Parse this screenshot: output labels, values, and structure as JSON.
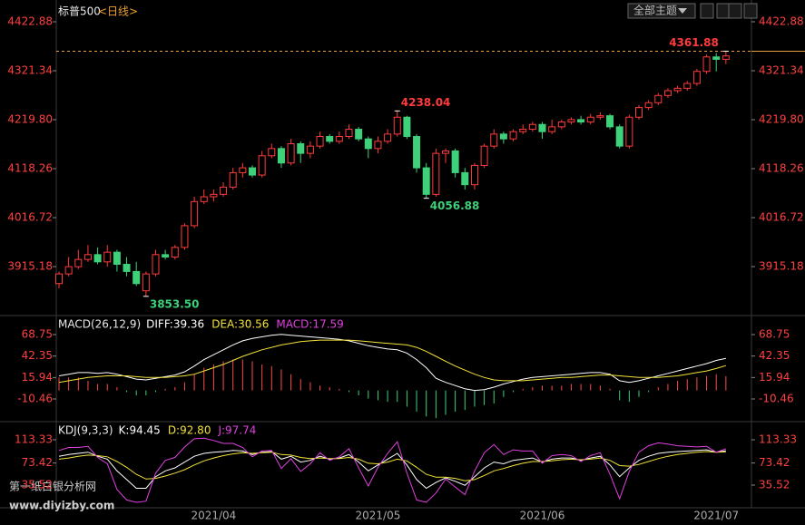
{
  "chart_data": [
    {
      "type": "candlestick",
      "title": "标普500",
      "subtitle": "<日线>",
      "up_color": "#ff3b3b",
      "down_color": "#3fd07a",
      "categories": [
        null,
        null,
        null,
        null,
        null,
        null,
        null,
        null,
        null,
        null,
        null,
        null,
        null,
        null,
        null,
        null,
        "2021/04",
        null,
        null,
        null,
        null,
        null,
        null,
        null,
        null,
        null,
        null,
        null,
        null,
        null,
        null,
        null,
        null,
        "2021/05",
        null,
        null,
        null,
        null,
        null,
        null,
        null,
        null,
        null,
        null,
        null,
        null,
        null,
        null,
        null,
        null,
        "2021/06",
        null,
        null,
        null,
        null,
        null,
        null,
        null,
        null,
        null,
        null,
        null,
        null,
        null,
        null,
        null,
        null,
        null,
        "2021/07",
        null
      ],
      "ohlc": [
        [
          3880,
          3905,
          3870,
          3900
        ],
        [
          3900,
          3935,
          3895,
          3915
        ],
        [
          3915,
          3950,
          3910,
          3930
        ],
        [
          3930,
          3960,
          3925,
          3940
        ],
        [
          3940,
          3955,
          3920,
          3925
        ],
        [
          3925,
          3960,
          3915,
          3945
        ],
        [
          3945,
          3950,
          3905,
          3920
        ],
        [
          3920,
          3935,
          3895,
          3905
        ],
        [
          3905,
          3925,
          3875,
          3880
        ],
        [
          3865,
          3905,
          3853.5,
          3900
        ],
        [
          3900,
          3950,
          3895,
          3940
        ],
        [
          3940,
          3950,
          3930,
          3935
        ],
        [
          3935,
          3960,
          3930,
          3955
        ],
        [
          3955,
          4005,
          3950,
          4000
        ],
        [
          4000,
          4060,
          3995,
          4050
        ],
        [
          4050,
          4075,
          4045,
          4060
        ],
        [
          4060,
          4075,
          4050,
          4065
        ],
        [
          4065,
          4090,
          4060,
          4080
        ],
        [
          4080,
          4120,
          4075,
          4110
        ],
        [
          4110,
          4130,
          4100,
          4120
        ],
        [
          4120,
          4125,
          4100,
          4105
        ],
        [
          4105,
          4155,
          4100,
          4145
        ],
        [
          4145,
          4170,
          4140,
          4160
        ],
        [
          4160,
          4165,
          4120,
          4130
        ],
        [
          4130,
          4180,
          4125,
          4170
        ],
        [
          4170,
          4175,
          4130,
          4150
        ],
        [
          4150,
          4175,
          4140,
          4165
        ],
        [
          4165,
          4195,
          4160,
          4185
        ],
        [
          4185,
          4190,
          4170,
          4175
        ],
        [
          4175,
          4195,
          4170,
          4185
        ],
        [
          4185,
          4210,
          4180,
          4200
        ],
        [
          4200,
          4205,
          4175,
          4180
        ],
        [
          4180,
          4185,
          4140,
          4160
        ],
        [
          4160,
          4185,
          4150,
          4175
        ],
        [
          4175,
          4200,
          4170,
          4190
        ],
        [
          4190,
          4238.04,
          4185,
          4225
        ],
        [
          4225,
          4228,
          4180,
          4185
        ],
        [
          4185,
          4190,
          4110,
          4120
        ],
        [
          4120,
          4130,
          4056.88,
          4065
        ],
        [
          4065,
          4160,
          4060,
          4150
        ],
        [
          4150,
          4160,
          4130,
          4155
        ],
        [
          4155,
          4160,
          4100,
          4110
        ],
        [
          4110,
          4120,
          4075,
          4085
        ],
        [
          4085,
          4130,
          4075,
          4125
        ],
        [
          4125,
          4170,
          4120,
          4165
        ],
        [
          4165,
          4200,
          4160,
          4190
        ],
        [
          4190,
          4195,
          4170,
          4180
        ],
        [
          4180,
          4200,
          4175,
          4195
        ],
        [
          4195,
          4210,
          4190,
          4200
        ],
        [
          4200,
          4215,
          4195,
          4210
        ],
        [
          4210,
          4215,
          4180,
          4195
        ],
        [
          4195,
          4220,
          4190,
          4205
        ],
        [
          4205,
          4220,
          4200,
          4215
        ],
        [
          4215,
          4225,
          4210,
          4220
        ],
        [
          4220,
          4228,
          4210,
          4215
        ],
        [
          4215,
          4232,
          4210,
          4225
        ],
        [
          4225,
          4235,
          4220,
          4228
        ],
        [
          4228,
          4232,
          4200,
          4205
        ],
        [
          4205,
          4210,
          4160,
          4165
        ],
        [
          4165,
          4230,
          4160,
          4225
        ],
        [
          4225,
          4250,
          4220,
          4245
        ],
        [
          4245,
          4260,
          4240,
          4255
        ],
        [
          4255,
          4275,
          4250,
          4270
        ],
        [
          4270,
          4285,
          4265,
          4280
        ],
        [
          4280,
          4290,
          4275,
          4285
        ],
        [
          4285,
          4300,
          4280,
          4295
        ],
        [
          4295,
          4325,
          4290,
          4320
        ],
        [
          4320,
          4355,
          4315,
          4350
        ],
        [
          4350,
          4358,
          4320,
          4345
        ],
        [
          4345,
          4361.88,
          4335,
          4352
        ]
      ],
      "ylim": [
        3813.7,
        4458.6
      ],
      "yticks": [
        4422.88,
        4321.34,
        {
          "value": 4219.8,
          "label": "4219.80"
        },
        4118.26,
        4016.72,
        3915.18
      ],
      "price_line": {
        "value": 4361.88,
        "color": "#e8a040"
      },
      "annotations": [
        {
          "index": 69,
          "value": 4361.88,
          "label": "4361.88"
        },
        {
          "index": 35,
          "value": 4238.04,
          "label": "4238.04"
        },
        {
          "index": 38,
          "value": 4056.88,
          "label": "4056.88"
        },
        {
          "index": 9,
          "value": 3853.5,
          "label": "3853.50"
        }
      ]
    },
    {
      "type": "macd",
      "title": "MACD(26,12,9)",
      "series": [
        {
          "name": "DIFF:39.36",
          "kind": "line",
          "color": "#ffffff",
          "values": [
            18,
            20,
            22,
            22,
            21,
            22,
            20,
            17,
            14,
            13,
            15,
            17,
            19,
            23,
            30,
            38,
            44,
            50,
            56,
            61,
            64,
            66,
            68,
            69,
            68,
            67,
            66,
            65,
            64,
            63,
            61,
            58,
            55,
            53,
            51,
            50,
            46,
            38,
            28,
            15,
            10,
            6,
            2,
            0,
            1,
            4,
            8,
            11,
            14,
            16,
            17,
            18,
            19,
            20,
            21,
            22,
            22,
            20,
            12,
            10,
            12,
            15,
            18,
            21,
            24,
            27,
            30,
            33,
            37,
            39.36
          ]
        },
        {
          "name": "DEA:30.56",
          "kind": "line",
          "color": "#f2e23a",
          "values": [
            10,
            12,
            14,
            16,
            17,
            18,
            18,
            18,
            17,
            16,
            16,
            16,
            17,
            18,
            20,
            24,
            28,
            32,
            37,
            42,
            46,
            50,
            53,
            56,
            58,
            60,
            61,
            62,
            62,
            62,
            62,
            61,
            60,
            59,
            58,
            57,
            56,
            53,
            48,
            42,
            36,
            30,
            25,
            20,
            16,
            13,
            12,
            12,
            12,
            13,
            14,
            15,
            16,
            16,
            17,
            18,
            19,
            19,
            18,
            17,
            16,
            16,
            16,
            17,
            18,
            20,
            22,
            24,
            27,
            30.56
          ]
        },
        {
          "name": "MACD:17.59",
          "kind": "bar",
          "color": "#ff4a4a",
          "negative_color": "#3fd07a",
          "values": [
            16,
            16,
            16,
            12,
            8,
            8,
            4,
            -2,
            -6,
            -6,
            -2,
            2,
            4,
            10,
            20,
            28,
            32,
            36,
            38,
            38,
            36,
            32,
            30,
            26,
            20,
            14,
            10,
            6,
            4,
            2,
            -2,
            -6,
            -10,
            -12,
            -14,
            -14,
            -20,
            -26,
            -32,
            -34,
            -30,
            -26,
            -24,
            -20,
            -18,
            -16,
            -8,
            -2,
            2,
            4,
            6,
            6,
            6,
            8,
            8,
            8,
            6,
            2,
            -12,
            -14,
            -8,
            -2,
            4,
            8,
            12,
            14,
            16,
            18,
            20,
            17.59
          ]
        }
      ],
      "legend_colors": [
        "#ffffff",
        "#f2e23a",
        "#e040e0"
      ],
      "ylim": [
        -38.35,
        89.95
      ],
      "yticks": [
        68.75,
        42.35,
        15.94,
        -10.46
      ]
    },
    {
      "type": "kdj",
      "title": "KDJ(9,3,3)",
      "series": [
        {
          "name": "K:94.45",
          "color": "#ffffff",
          "values": [
            85,
            88,
            90,
            92,
            85,
            80,
            60,
            45,
            30,
            30,
            50,
            60,
            65,
            75,
            85,
            90,
            92,
            93,
            95,
            94,
            88,
            92,
            93,
            80,
            85,
            75,
            78,
            85,
            80,
            82,
            88,
            75,
            60,
            70,
            80,
            90,
            70,
            45,
            30,
            40,
            48,
            42,
            35,
            50,
            65,
            75,
            72,
            78,
            80,
            82,
            75,
            80,
            82,
            82,
            78,
            82,
            85,
            70,
            50,
            65,
            78,
            85,
            90,
            92,
            93,
            94,
            95,
            96,
            92,
            94.45
          ]
        },
        {
          "name": "D:92.80",
          "color": "#f2e23a",
          "values": [
            80,
            82,
            85,
            87,
            86,
            84,
            76,
            66,
            54,
            46,
            47,
            51,
            56,
            62,
            70,
            77,
            82,
            86,
            89,
            91,
            90,
            91,
            92,
            88,
            87,
            83,
            81,
            82,
            81,
            81,
            83,
            80,
            73,
            72,
            75,
            80,
            77,
            66,
            54,
            49,
            49,
            47,
            43,
            45,
            52,
            60,
            64,
            69,
            73,
            76,
            76,
            77,
            79,
            80,
            79,
            80,
            82,
            78,
            69,
            68,
            71,
            76,
            81,
            85,
            88,
            90,
            92,
            93,
            92,
            92.8
          ]
        },
        {
          "name": "J:97.74",
          "color": "#e040e0",
          "values": [
            95,
            100,
            100,
            102,
            83,
            72,
            28,
            10,
            6,
            8,
            56,
            78,
            83,
            101,
            115,
            116,
            112,
            107,
            107,
            100,
            84,
            94,
            95,
            64,
            81,
            59,
            72,
            91,
            78,
            84,
            98,
            65,
            34,
            66,
            90,
            110,
            56,
            10,
            6,
            22,
            46,
            32,
            19,
            60,
            91,
            105,
            88,
            96,
            94,
            94,
            73,
            86,
            88,
            86,
            76,
            86,
            91,
            54,
            12,
            59,
            92,
            103,
            108,
            106,
            103,
            102,
            101,
            102,
            92,
            97.74
          ]
        }
      ],
      "ylim": [
        -3.4,
        141.3
      ],
      "yticks": [
        113.33,
        73.42,
        35.52
      ]
    }
  ],
  "toolbar": {
    "theme_button": "全部主题"
  },
  "watermark": {
    "name": "第一纸白银分析网",
    "url": "www.diyizby.com"
  }
}
